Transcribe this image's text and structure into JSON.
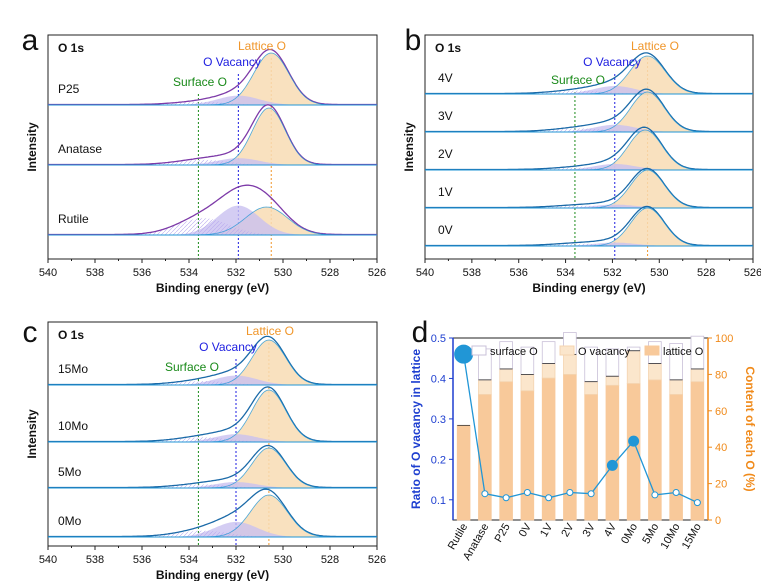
{
  "colors": {
    "lattice": "#f0962a",
    "vacancy": "#1d1de0",
    "surface": "#1a8a1a",
    "axis_right": "#f08a1a",
    "axis_left": "#1e3fd0",
    "line_blue": "#2196d6",
    "fill_lattice": "#f8dcb4",
    "fill_vacancy": "#c9c0f0"
  },
  "common": {
    "xlabel": "Binding energy (eV)",
    "ylabel": "Intensity",
    "x_ticks": [
      "540",
      "538",
      "536",
      "534",
      "532",
      "530",
      "528",
      "526"
    ],
    "o1s": "O 1s",
    "lattice_label": "Lattice O",
    "vacancy_label": "O Vacancy",
    "surface_label": "Surface O"
  },
  "chart_data": [
    {
      "panel": "a",
      "type": "line",
      "title": "O 1s",
      "xlim": [
        540,
        526
      ],
      "xlabel": "Binding energy (eV)",
      "ylabel": "Intensity",
      "reference_lines": {
        "surface_O": 533.6,
        "O_vacancy": 531.9,
        "lattice_O": 530.5
      },
      "series": [
        {
          "name": "P25",
          "peak": 530.5
        },
        {
          "name": "Anatase",
          "peak": 530.6
        },
        {
          "name": "Rutile",
          "peak": 530.7
        }
      ]
    },
    {
      "panel": "b",
      "type": "line",
      "title": "O 1s",
      "xlim": [
        540,
        526
      ],
      "xlabel": "Binding energy (eV)",
      "ylabel": "Intensity",
      "reference_lines": {
        "surface_O": 533.6,
        "O_vacancy": 531.9,
        "lattice_O": 530.5
      },
      "series": [
        {
          "name": "4V",
          "peak": 530.5
        },
        {
          "name": "3V",
          "peak": 530.5
        },
        {
          "name": "2V",
          "peak": 530.6
        },
        {
          "name": "1V",
          "peak": 530.5
        },
        {
          "name": "0V",
          "peak": 530.5
        }
      ]
    },
    {
      "panel": "c",
      "type": "line",
      "title": "O 1s",
      "xlim": [
        540,
        526
      ],
      "xlabel": "Binding energy (eV)",
      "ylabel": "Intensity",
      "reference_lines": {
        "surface_O": 533.6,
        "O_vacancy": 532.0,
        "lattice_O": 530.6
      },
      "series": [
        {
          "name": "15Mo",
          "peak": 530.6
        },
        {
          "name": "10Mo",
          "peak": 530.6
        },
        {
          "name": "5Mo",
          "peak": 530.6
        },
        {
          "name": "0Mo",
          "peak": 530.6
        }
      ]
    },
    {
      "panel": "d",
      "type": "bar",
      "categories": [
        "Rutile",
        "Anatase",
        "P25",
        "0V",
        "1V",
        "2V",
        "3V",
        "4V",
        "0Mo",
        "5Mo",
        "10Mo",
        "15Mo"
      ],
      "ylabel_left": "Ratio of O vacancy in lattice",
      "ylabel_right": "Content of each O (%)",
      "ylim_left": [
        0.05,
        0.5
      ],
      "ylim_right": [
        0,
        100
      ],
      "left_ticks": [
        "0.1",
        "0.2",
        "0.3",
        "0.4",
        "0.5"
      ],
      "right_ticks": [
        "0",
        "20",
        "40",
        "60",
        "80",
        "100"
      ],
      "legend": [
        "surface O",
        "O vacancy",
        "lattice O"
      ],
      "stack_series": [
        {
          "name": "lattice O",
          "values": [
            52,
            69,
            76,
            71,
            78,
            80,
            69,
            74,
            75,
            77,
            69,
            76
          ]
        },
        {
          "name": "O vacancy",
          "values": [
            0,
            8,
            7,
            9,
            8,
            11,
            7,
            5,
            18,
            9,
            8,
            7
          ]
        },
        {
          "name": "surface O",
          "values": [
            0,
            17,
            15,
            15,
            12,
            12,
            19,
            15,
            2,
            12,
            20,
            18
          ]
        }
      ],
      "ratio_series": {
        "name": "Ratio of O vacancy in lattice",
        "values": [
          0.46,
          0.115,
          0.105,
          0.118,
          0.105,
          0.118,
          0.115,
          0.185,
          0.245,
          0.112,
          0.118,
          0.093
        ]
      }
    }
  ]
}
